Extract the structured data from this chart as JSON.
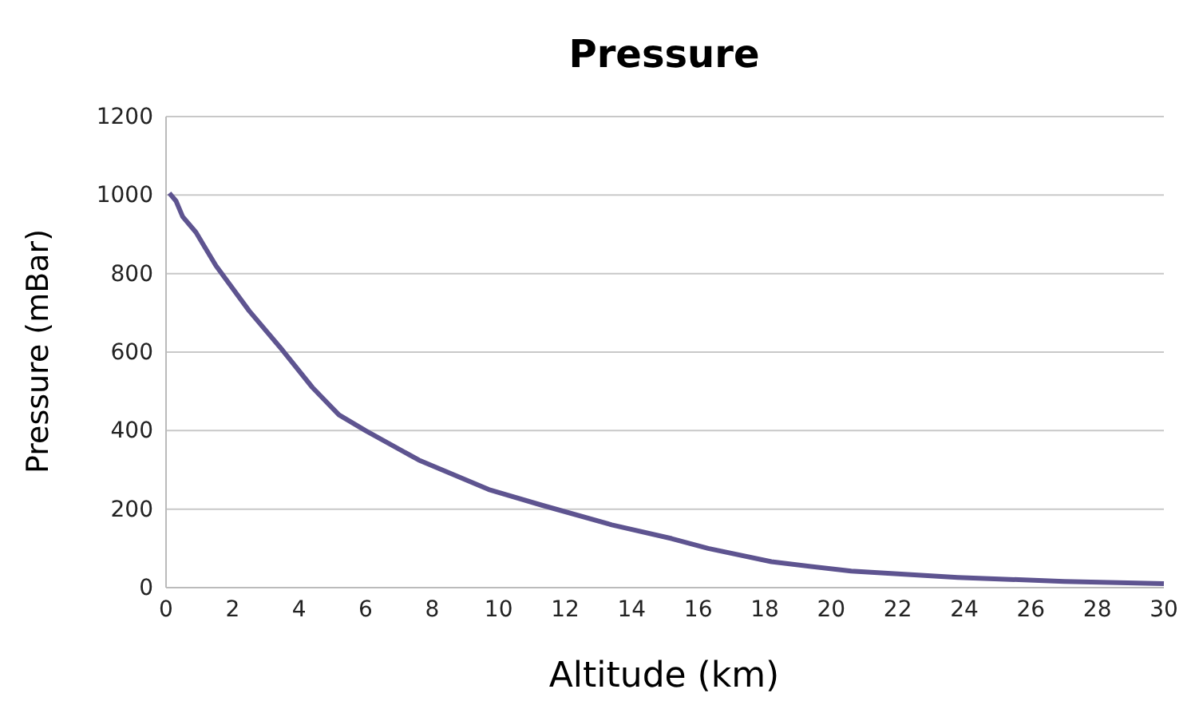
{
  "chart_data": {
    "type": "line",
    "title": "Pressure",
    "xlabel": "Altitude  (km)",
    "ylabel": "Pressure (mBar)",
    "x": [
      0.1,
      0.3,
      0.5,
      0.9,
      1.5,
      2.5,
      3.5,
      4.4,
      5.2,
      6.0,
      7.6,
      9.7,
      11.3,
      13.4,
      15.2,
      16.3,
      18.2,
      20.6,
      23.8,
      27.0,
      30.0
    ],
    "series": [
      {
        "color": "#5e5490",
        "values": [
          1005,
          985,
          945,
          905,
          820,
          705,
          605,
          510,
          440,
          400,
          325,
          250,
          210,
          160,
          125,
          100,
          66,
          42,
          26,
          16,
          10
        ]
      }
    ],
    "xlim": [
      0,
      30
    ],
    "xticks": [
      0,
      2,
      4,
      6,
      8,
      10,
      12,
      14,
      16,
      18,
      20,
      22,
      24,
      26,
      28,
      30
    ],
    "ylim": [
      0,
      1200
    ],
    "yticks": [
      0,
      200,
      400,
      600,
      800,
      1000,
      1200
    ],
    "grid": "y",
    "marker": "none",
    "line_style": "solid"
  }
}
